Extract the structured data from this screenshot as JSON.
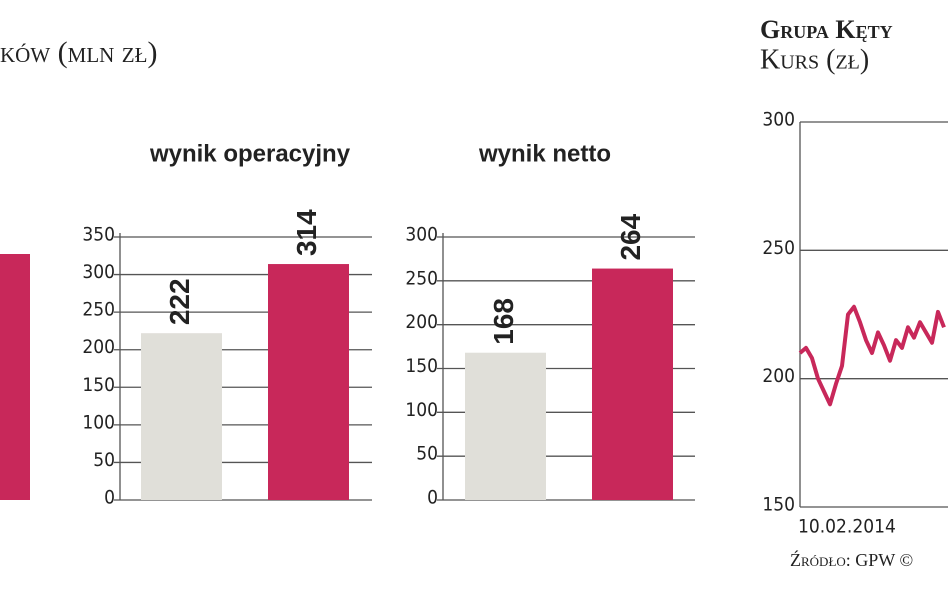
{
  "header": {
    "title_fragment": "ków (mln zł)"
  },
  "chart_data": [
    {
      "type": "bar",
      "title": "wynik operacyjny",
      "categories": [
        null,
        null
      ],
      "values": [
        222,
        314
      ],
      "colors": [
        "#e0dfd9",
        "#c8285a"
      ],
      "ylim": [
        0,
        350
      ],
      "yticks": [
        0,
        50,
        100,
        150,
        200,
        250,
        300,
        350
      ],
      "grid": true
    },
    {
      "type": "bar",
      "title": "wynik netto",
      "categories": [
        null,
        null
      ],
      "values": [
        168,
        264
      ],
      "colors": [
        "#e0dfd9",
        "#c8285a"
      ],
      "ylim": [
        0,
        300
      ],
      "yticks": [
        0,
        50,
        100,
        150,
        200,
        250,
        300
      ],
      "grid": true
    },
    {
      "type": "line",
      "title": "Grupa Kęty",
      "subtitle": "Kurs (zł)",
      "source": "Źródło: GPW ©",
      "categories": [
        "10.02.2014",
        null,
        null,
        null,
        null,
        null,
        null,
        null,
        null,
        null,
        null,
        null,
        null,
        null,
        null,
        null,
        null,
        null,
        null,
        null,
        null,
        null,
        null,
        null,
        null
      ],
      "series": [
        {
          "name": "Kurs",
          "color": "#c8285a",
          "values": [
            210,
            212,
            208,
            200,
            195,
            190,
            198,
            205,
            225,
            228,
            222,
            215,
            210,
            218,
            213,
            207,
            215,
            212,
            220,
            216,
            222,
            218,
            214,
            226,
            220
          ]
        }
      ],
      "ylim": [
        150,
        300
      ],
      "yticks": [
        150,
        200,
        250,
        300
      ],
      "grid": true
    }
  ]
}
